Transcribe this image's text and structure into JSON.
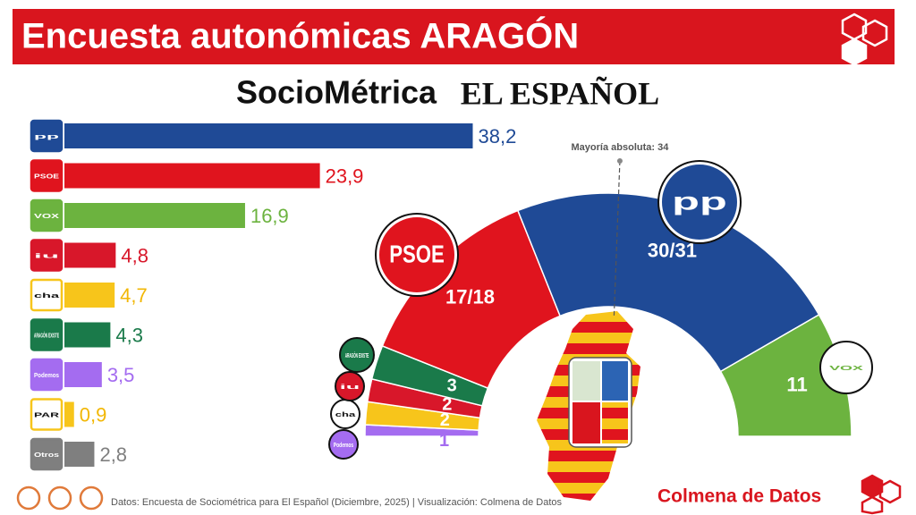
{
  "chart_data": [
    {
      "type": "bar",
      "title": "Encuesta autonómicas ARAGÓN",
      "categories": [
        "pp",
        "PSOE",
        "VOX",
        "iu",
        "cha",
        "ARAGÓN EXISTE",
        "Podemos",
        "PAR",
        "Otros"
      ],
      "values": [
        38.2,
        23.9,
        16.9,
        4.8,
        4.7,
        4.3,
        3.5,
        0.9,
        2.8
      ],
      "value_labels": [
        "38,2",
        "23,9",
        "16,9",
        "4,8",
        "4,7",
        "4,3",
        "3,5",
        "0,9",
        "2,8"
      ],
      "colors": [
        "#1f4a96",
        "#e0141e",
        "#6cb33f",
        "#d8172a",
        "#f7c51b",
        "#1a7a4a",
        "#a46cf0",
        "#f7c51b",
        "#7f7f7f"
      ],
      "xlim": [
        0,
        40
      ]
    },
    {
      "type": "hemicycle",
      "categories": [
        "Podemos",
        "cha",
        "iu",
        "ARAGÓN EXISTE",
        "PSOE",
        "pp",
        "VOX"
      ],
      "values": [
        1,
        2,
        2,
        3,
        17,
        30,
        11
      ],
      "value_labels": [
        "1",
        "2",
        "2",
        "3",
        "17/18",
        "30/31",
        "11"
      ],
      "colors": [
        "#a46cf0",
        "#f7c51b",
        "#d8172a",
        "#1a7a4a",
        "#e0141e",
        "#1f4a96",
        "#6cb33f"
      ],
      "majority": {
        "value": 34,
        "label": "Mayoría absoluta: 34"
      }
    }
  ],
  "header_logos": [
    "SocioMétrica",
    "EL ESPAÑOL"
  ],
  "footer": {
    "source": "Datos: Encuesta de Sociométrica para El Español (Diciembre, 2025) | Visualización: Colmena de Datos",
    "brand": "Colmena de Datos"
  }
}
